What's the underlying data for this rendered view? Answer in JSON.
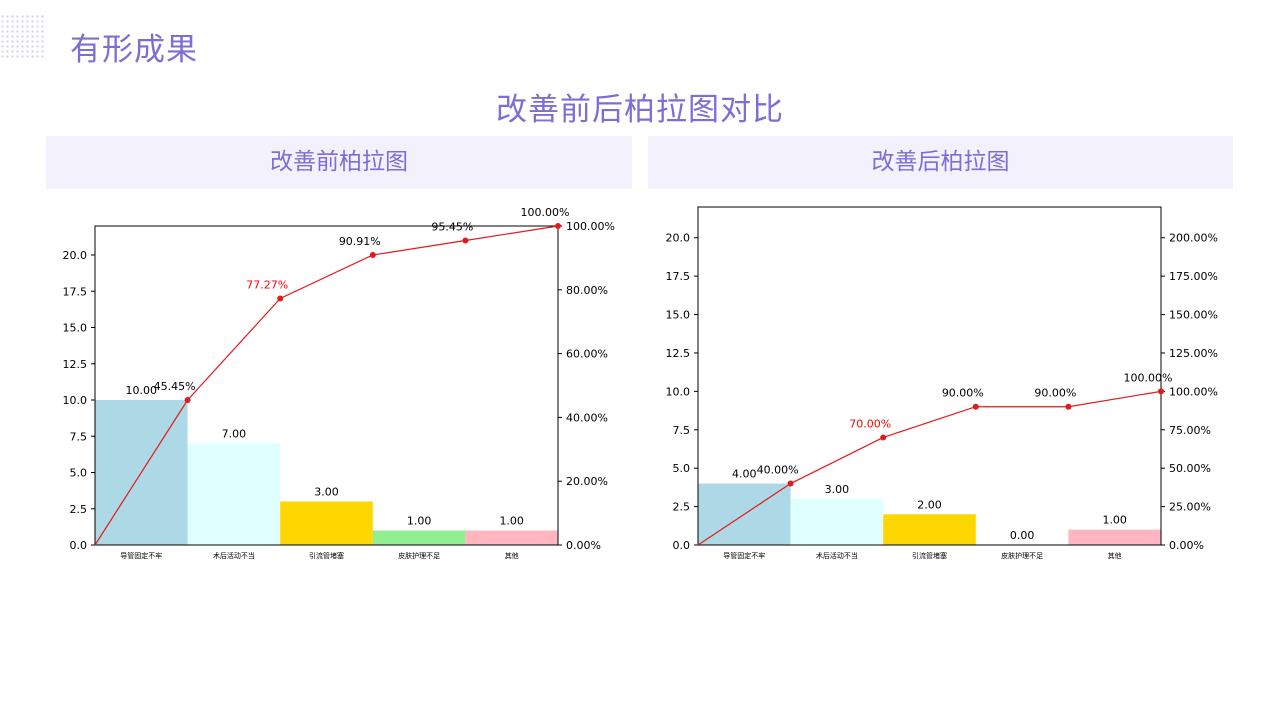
{
  "slide_title": "有形成果",
  "main_title": "改善前后柏拉图对比",
  "panels": [
    {
      "header": "改善前柏拉图"
    },
    {
      "header": "改善后柏拉图"
    }
  ],
  "chart_data": [
    {
      "type": "bar",
      "title": "",
      "xlabel": "",
      "ylabel": "",
      "categories": [
        "导管固定不牢",
        "术后活动不当",
        "引流管堵塞",
        "皮肤护理不足",
        "其他"
      ],
      "values": [
        10,
        7,
        3,
        1,
        1
      ],
      "value_labels": [
        "10.00",
        "7.00",
        "3.00",
        "1.00",
        "1.00"
      ],
      "bar_colors": [
        "#add8e6",
        "#e0ffff",
        "#ffd700",
        "#90ee90",
        "#ffb6c1"
      ],
      "ylim": [
        0,
        22
      ],
      "yticks": [
        0.0,
        2.5,
        5.0,
        7.5,
        10.0,
        12.5,
        15.0,
        17.5,
        20.0
      ],
      "yticklabels": [
        "0.0",
        "2.5",
        "5.0",
        "7.5",
        "10.0",
        "12.5",
        "15.0",
        "17.5",
        "20.0"
      ],
      "cumulative": {
        "values": [
          45.45,
          77.27,
          90.91,
          95.45,
          100.0
        ],
        "labels": [
          "45.45%",
          "77.27%",
          "90.91%",
          "95.45%",
          "100.00%"
        ],
        "highlight_index": 1,
        "color": "#e31a1c",
        "highlight_color": "#ff0000"
      },
      "y2lim": [
        0,
        100
      ],
      "y2ticks": [
        0,
        20,
        40,
        60,
        80,
        100
      ],
      "y2ticklabels": [
        "0.00%",
        "20.00%",
        "40.00%",
        "60.00%",
        "80.00%",
        "100.00%"
      ]
    },
    {
      "type": "bar",
      "title": "",
      "xlabel": "",
      "ylabel": "",
      "categories": [
        "导管固定不牢",
        "术后活动不当",
        "引流管堵塞",
        "皮肤护理不足",
        "其他"
      ],
      "values": [
        4,
        3,
        2,
        0,
        1
      ],
      "value_labels": [
        "4.00",
        "3.00",
        "2.00",
        "0.00",
        "1.00"
      ],
      "bar_colors": [
        "#add8e6",
        "#e0ffff",
        "#ffd700",
        "#90ee90",
        "#ffb6c1"
      ],
      "ylim": [
        0,
        22
      ],
      "yticks": [
        0.0,
        2.5,
        5.0,
        7.5,
        10.0,
        12.5,
        15.0,
        17.5,
        20.0
      ],
      "yticklabels": [
        "0.0",
        "2.5",
        "5.0",
        "7.5",
        "10.0",
        "12.5",
        "15.0",
        "17.5",
        "20.0"
      ],
      "cumulative": {
        "values": [
          40.0,
          70.0,
          90.0,
          90.0,
          100.0
        ],
        "labels": [
          "40.00%",
          "70.00%",
          "90.00%",
          "90.00%",
          "100.00%"
        ],
        "highlight_index": 1,
        "color": "#e31a1c",
        "highlight_color": "#ff0000"
      },
      "y2lim": [
        0,
        220
      ],
      "y2ticks": [
        0,
        25,
        50,
        75,
        100,
        125,
        150,
        175,
        200
      ],
      "y2ticklabels": [
        "0.00%",
        "25.00%",
        "50.00%",
        "75.00%",
        "100.00%",
        "125.00%",
        "150.00%",
        "175.00%",
        "200.00%"
      ]
    }
  ]
}
